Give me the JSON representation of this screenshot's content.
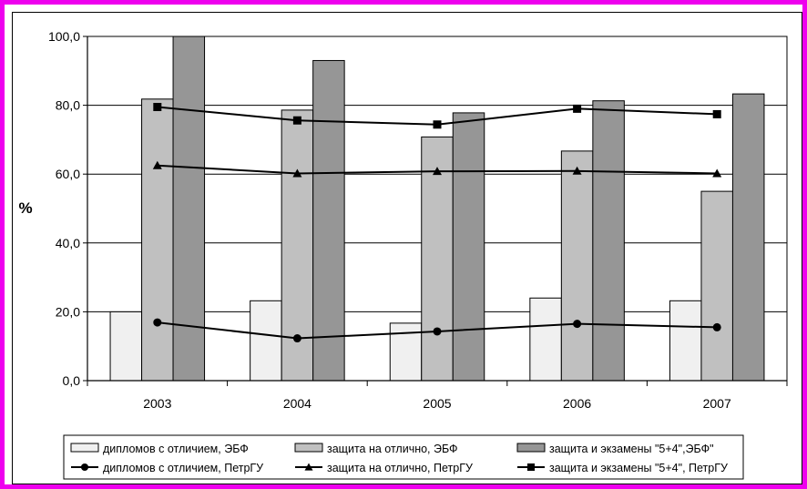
{
  "chart_data": {
    "type": "bar",
    "title": "",
    "xlabel": "",
    "ylabel": "%",
    "ylim": [
      0,
      100
    ],
    "yticks": [
      "0,0",
      "20,0",
      "40,0",
      "60,0",
      "80,0",
      "100,0"
    ],
    "categories": [
      "2003",
      "2004",
      "2005",
      "2006",
      "2007"
    ],
    "grid": true,
    "legend_position": "bottom",
    "bar_series": [
      {
        "name": "дипломов с отличием, ЭБФ",
        "color": "#f0f0f0",
        "values": [
          20.0,
          23.2,
          16.7,
          24.0,
          23.2
        ]
      },
      {
        "name": "защита на отлично, ЭБФ",
        "color": "#c0c0c0",
        "values": [
          81.8,
          78.6,
          70.8,
          66.7,
          55.0
        ]
      },
      {
        "name": "защита и экзамены \"5+4\",ЭБФ\"",
        "color": "#969696",
        "values": [
          100.0,
          93.0,
          77.8,
          81.3,
          83.3
        ]
      }
    ],
    "line_series": [
      {
        "name": "дипломов с отличием, ПетрГУ",
        "marker": "circle",
        "values": [
          16.9,
          12.3,
          14.3,
          16.5,
          15.5
        ]
      },
      {
        "name": "защита на отлично, ПетрГУ",
        "marker": "triangle",
        "values": [
          62.5,
          60.2,
          60.8,
          60.9,
          60.2
        ]
      },
      {
        "name": "защита и экзамены \"5+4\", ПетрГУ",
        "marker": "square",
        "values": [
          79.5,
          75.6,
          74.4,
          79.0,
          77.4
        ]
      }
    ]
  }
}
